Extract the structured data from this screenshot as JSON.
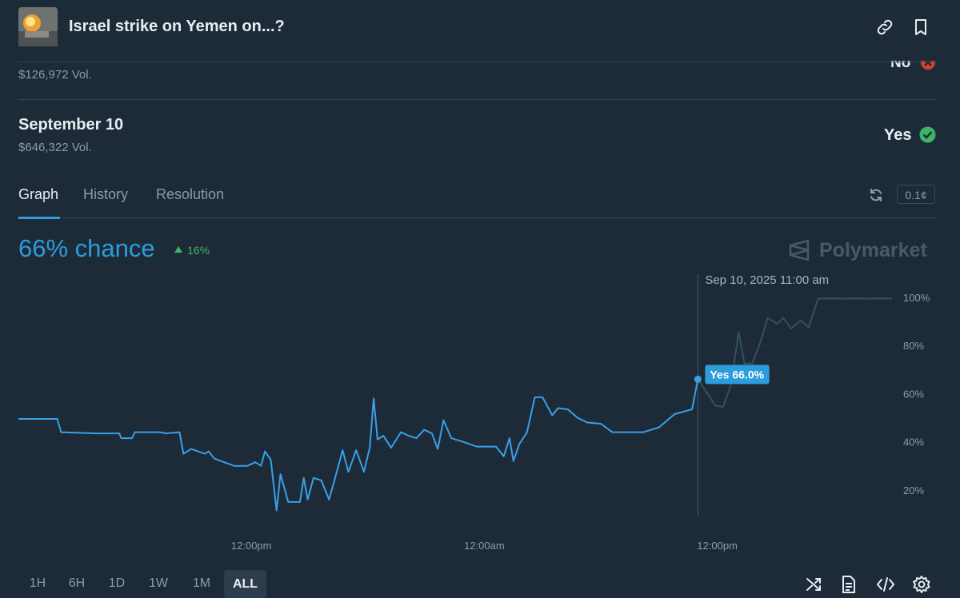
{
  "header": {
    "title": "Israel strike on Yemen on...?"
  },
  "markets": [
    {
      "volume": "$126,972 Vol.",
      "outcome": "No"
    },
    {
      "name": "September 10",
      "volume": "$646,322 Vol.",
      "outcome": "Yes"
    }
  ],
  "tabs": [
    "Graph",
    "History",
    "Resolution"
  ],
  "precision": "0.1¢",
  "chance": "66% chance",
  "change": "16%",
  "brand": "Polymarket",
  "time_ranges": [
    "1H",
    "6H",
    "1D",
    "1W",
    "1M",
    "ALL"
  ],
  "active_range": "ALL",
  "chart_data": {
    "type": "line",
    "color": "#3a9fe6",
    "x": [
      0,
      2.0,
      2.2,
      4.0,
      5.2,
      5.3,
      5.85,
      6.0,
      7.3,
      7.6,
      8.3,
      8.5,
      8.9,
      9.6,
      9.8,
      10.1,
      11.1,
      11.8,
      12.2,
      12.5,
      12.7,
      13.0,
      13.3,
      13.5,
      13.9,
      14.5,
      14.7,
      14.9,
      15.2,
      15.6,
      16.0,
      16.4,
      16.7,
      17.0,
      17.4,
      17.8,
      18.1,
      18.3,
      18.5,
      18.8,
      19.2,
      19.7,
      20.1,
      20.5,
      20.9,
      21.3,
      21.6,
      21.9,
      22.3,
      22.9,
      23.6,
      24.6,
      25.0,
      25.3,
      25.5,
      25.8,
      26.2,
      26.6,
      27.0,
      27.5,
      27.8,
      28.3,
      28.8,
      29.3,
      30.0,
      30.6,
      31.4,
      32.2,
      33.0,
      33.8,
      34.7,
      35.0,
      35.5,
      35.9,
      36.3,
      36.7,
      37.1,
      37.4,
      37.8,
      38.2,
      38.6,
      39.1,
      39.4,
      39.8,
      40.3,
      40.7,
      41.2,
      41.9,
      45.0
    ],
    "values": [
      49.5,
      49.5,
      44,
      43.5,
      43.5,
      41.5,
      41.5,
      44,
      44,
      43.5,
      44,
      35,
      37,
      35,
      36,
      33,
      30,
      30,
      31.5,
      30,
      36,
      32.5,
      11.5,
      26.5,
      15,
      15,
      25,
      16,
      25,
      24,
      16,
      27.5,
      36.5,
      27.5,
      36.5,
      27.5,
      37.5,
      58,
      41,
      42.5,
      37.5,
      44,
      42.5,
      41.5,
      45,
      43.5,
      37,
      49,
      41.5,
      40,
      38,
      38,
      34,
      41.5,
      32,
      39,
      44,
      58.5,
      58.5,
      51,
      54,
      53.5,
      50,
      48,
      47.5,
      44,
      44,
      44,
      46,
      51.5,
      53.5,
      66,
      60,
      55,
      54.5,
      63.5,
      85.5,
      72.5,
      72.5,
      81,
      91.5,
      89,
      91.5,
      87,
      90.5,
      87.5,
      99.5,
      99.5,
      99.5
    ],
    "xlim": [
      0,
      45
    ],
    "xticks": [
      {
        "value": 12,
        "label": "12:00pm"
      },
      {
        "value": 24,
        "label": "12:00am"
      },
      {
        "value": 36,
        "label": "12:00pm"
      }
    ],
    "ylim": [
      0,
      100
    ],
    "yticks": [
      {
        "value": 20,
        "label": "20%"
      },
      {
        "value": 40,
        "label": "40%"
      },
      {
        "value": 60,
        "label": "60%"
      },
      {
        "value": 80,
        "label": "80%"
      },
      {
        "value": 100,
        "label": "100%"
      }
    ],
    "grid": true,
    "hover": {
      "x": 35,
      "label": "Sep 10, 2025 11:00 am",
      "value_label": "Yes 66.0%"
    }
  }
}
